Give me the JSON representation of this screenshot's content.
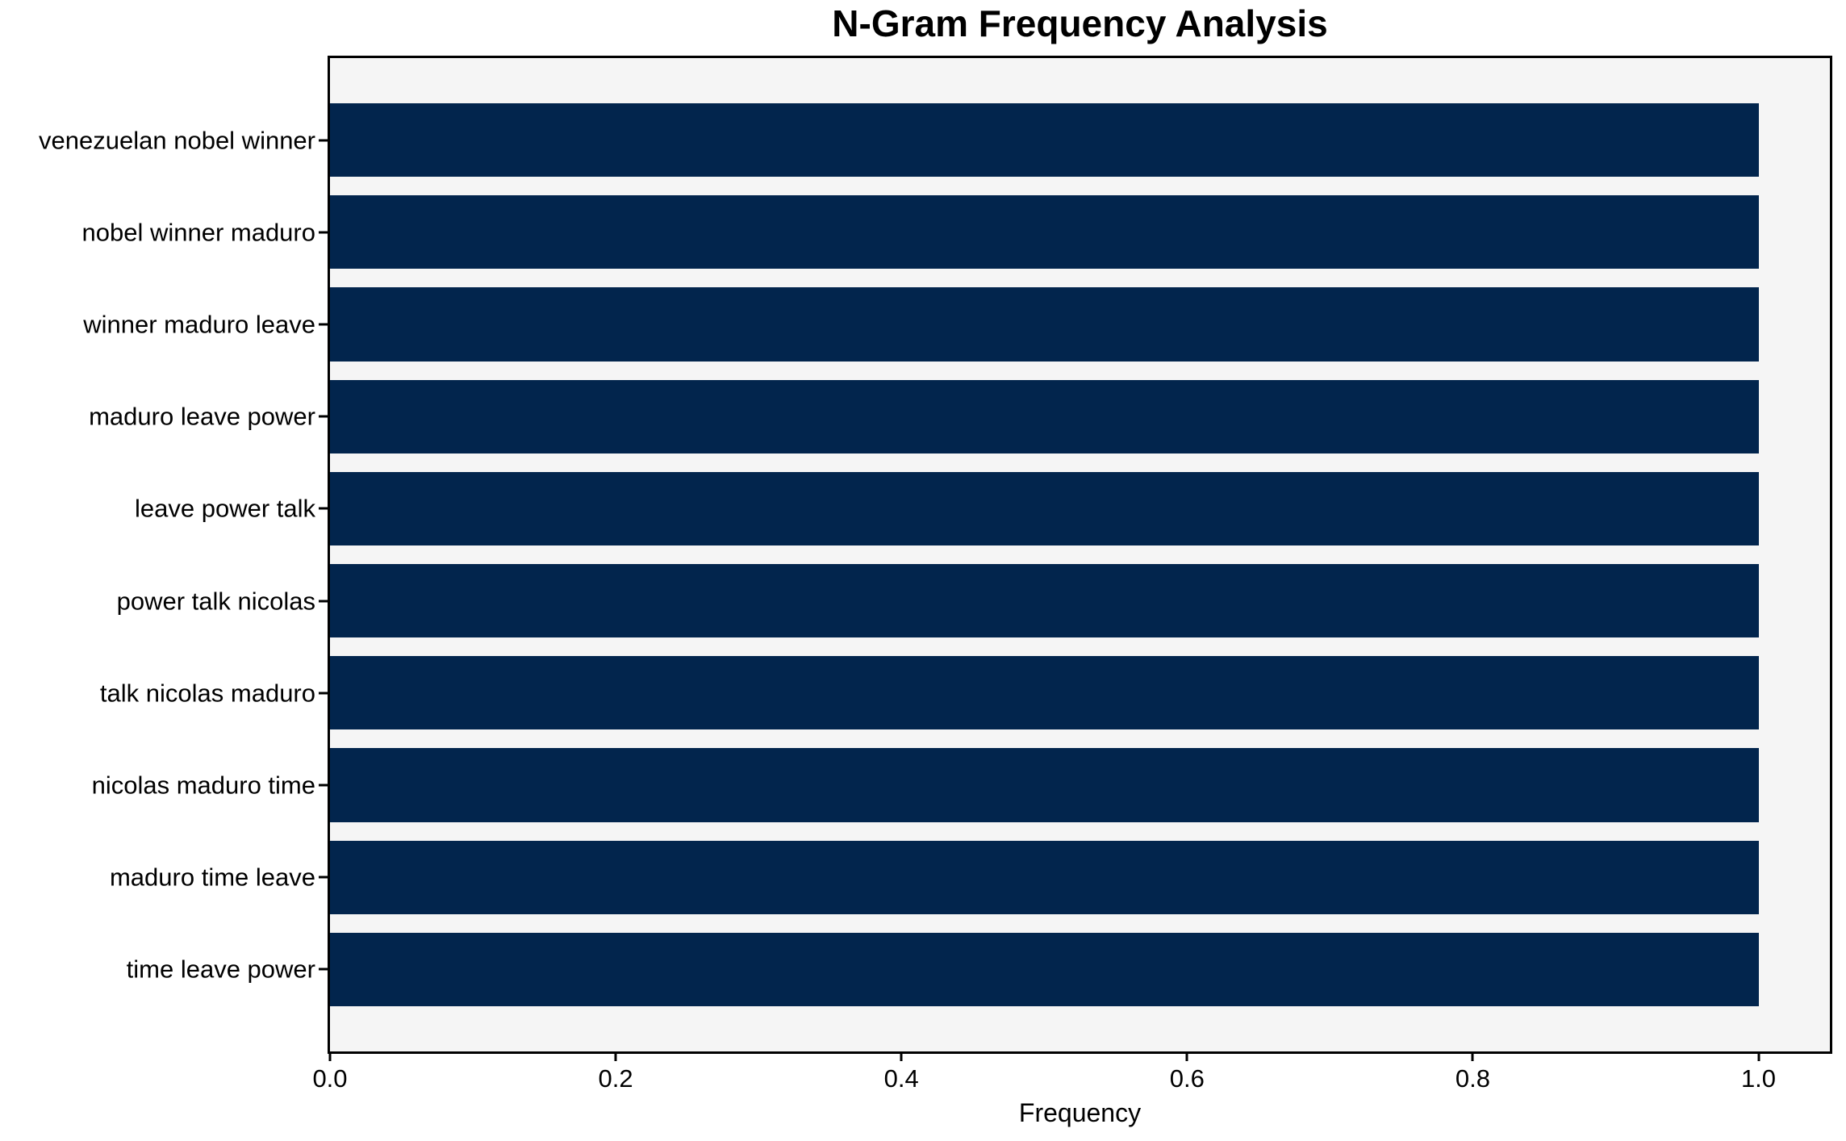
{
  "chart_data": {
    "type": "bar",
    "orientation": "horizontal",
    "title": "N-Gram Frequency Analysis",
    "xlabel": "Frequency",
    "ylabel": "",
    "categories": [
      "venezuelan nobel winner",
      "nobel winner maduro",
      "winner maduro leave",
      "maduro leave power",
      "leave power talk",
      "power talk nicolas",
      "talk nicolas maduro",
      "nicolas maduro time",
      "maduro time leave",
      "time leave power"
    ],
    "values": [
      1.0,
      1.0,
      1.0,
      1.0,
      1.0,
      1.0,
      1.0,
      1.0,
      1.0,
      1.0
    ],
    "xlim": [
      0,
      1.05
    ],
    "xtick_labels": [
      "0.0",
      "0.2",
      "0.4",
      "0.6",
      "0.8",
      "1.0"
    ],
    "xtick_values": [
      0.0,
      0.2,
      0.4,
      0.6,
      0.8,
      1.0
    ],
    "bar_height_frac": 0.8,
    "grid": false,
    "legend": null,
    "colors": {
      "bar": "#02254d",
      "plot_background": "#f5f5f5",
      "figure_background": "#ffffff",
      "spine": "#000000",
      "text": "#000000"
    }
  }
}
